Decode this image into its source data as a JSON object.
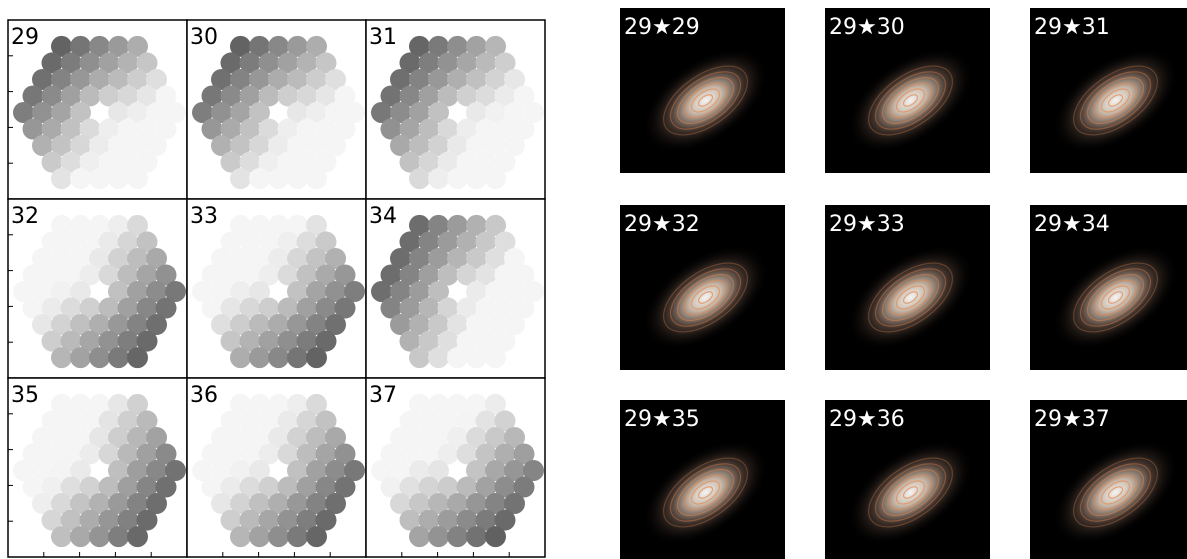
{
  "left_panels": {
    "labels": [
      "29",
      "30",
      "31",
      "32",
      "33",
      "34",
      "35",
      "36",
      "37"
    ]
  },
  "right_panels": {
    "labels": [
      "29★29",
      "29★30",
      "29★31",
      "29★32",
      "29★33",
      "29★34",
      "29★35",
      "29★36",
      "29★37"
    ]
  }
}
